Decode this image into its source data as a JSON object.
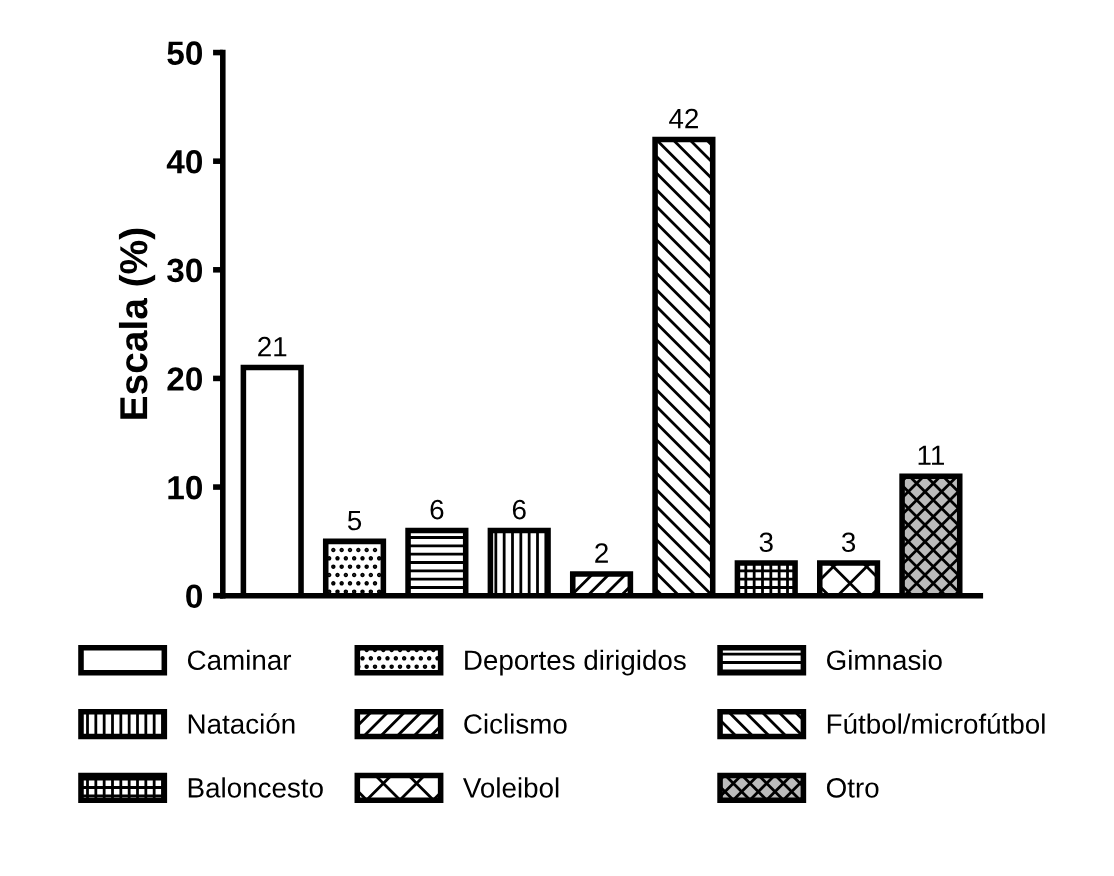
{
  "chart_data": {
    "type": "bar",
    "ylabel": "Escala (%)",
    "categories": [
      null,
      null,
      null,
      null,
      null,
      null,
      null,
      null,
      null
    ],
    "series": [
      {
        "name": "Caminar",
        "color": "#ffffff",
        "values": [
          21,
          null,
          null,
          null,
          null,
          null,
          null,
          null,
          null
        ]
      },
      {
        "name": "Deportes dirigidos",
        "color": "#ffffff",
        "values": [
          null,
          5,
          null,
          null,
          null,
          null,
          null,
          null,
          null
        ]
      },
      {
        "name": "Gimnasio",
        "color": "#ffffff",
        "values": [
          null,
          null,
          6,
          null,
          null,
          null,
          null,
          null,
          null
        ]
      },
      {
        "name": "Natación",
        "color": "#ffffff",
        "values": [
          null,
          null,
          null,
          6,
          null,
          null,
          null,
          null,
          null
        ]
      },
      {
        "name": "Ciclismo",
        "color": "#ffffff",
        "values": [
          null,
          null,
          null,
          null,
          2,
          null,
          null,
          null,
          null
        ]
      },
      {
        "name": "Fútbol/microfútbol",
        "color": "#ffffff",
        "values": [
          null,
          null,
          null,
          null,
          null,
          42,
          null,
          null,
          null
        ]
      },
      {
        "name": "Baloncesto",
        "color": "#ffffff",
        "values": [
          null,
          null,
          null,
          null,
          null,
          null,
          3,
          null,
          null
        ]
      },
      {
        "name": "Voleibol",
        "color": "#ffffff",
        "values": [
          null,
          null,
          null,
          null,
          null,
          null,
          null,
          3,
          null
        ]
      },
      {
        "name": "Otro",
        "color": "#bbbbbb",
        "values": [
          null,
          null,
          null,
          null,
          null,
          null,
          null,
          null,
          11
        ]
      }
    ],
    "ylim": [
      0,
      50
    ],
    "yticks": [
      0,
      10,
      20,
      30,
      40,
      50
    ],
    "grid": false,
    "legend": "bottom",
    "data_labels": true
  }
}
